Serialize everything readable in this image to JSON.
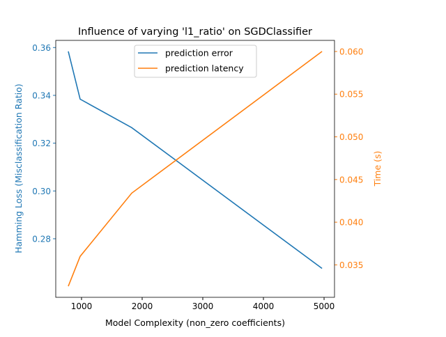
{
  "chart_data": {
    "type": "line",
    "title": "Influence of varying 'l1_ratio' on SGDClassifier",
    "xlabel": "Model Complexity (non_zero coefficients)",
    "ylabel_left": "Hamming Loss (Misclassification Ratio)",
    "ylabel_right": "Time (s)",
    "xlim": [
      575,
      5172
    ],
    "ylim_left": [
      0.2555,
      0.363
    ],
    "ylim_right": [
      0.0312,
      0.0613
    ],
    "xticks": [
      1000,
      2000,
      3000,
      4000,
      5000
    ],
    "yticks_left": [
      "0.28",
      "0.30",
      "0.32",
      "0.34",
      "0.36"
    ],
    "yticks_right": [
      "0.035",
      "0.040",
      "0.045",
      "0.050",
      "0.055",
      "0.060"
    ],
    "grid": false,
    "legend_placement": "upper-center",
    "x": [
      782,
      977,
      1828,
      4966
    ],
    "series": [
      {
        "name": "prediction error",
        "axis": "left",
        "color": "#1f77b4",
        "values": [
          0.3584,
          0.3384,
          0.3265,
          0.2676
        ]
      },
      {
        "name": "prediction latency",
        "axis": "right",
        "color": "#ff7f0e",
        "values": [
          0.0325,
          0.036,
          0.0434,
          0.06
        ]
      }
    ]
  }
}
